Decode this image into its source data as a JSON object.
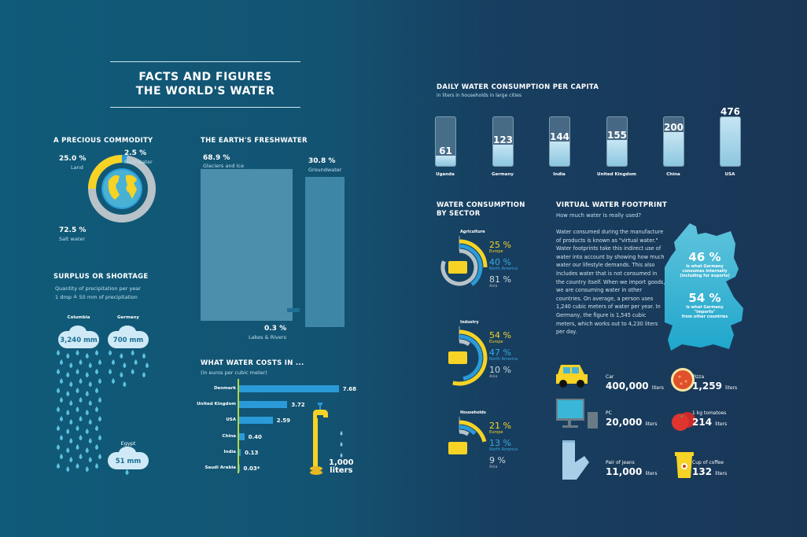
{
  "title": {
    "line1": "FACTS AND FIGURES",
    "line2": "THE WORLD'S WATER"
  },
  "colors": {
    "yellow": "#f6d325",
    "blue": "#2a9bd8",
    "gray": "#b7c3c8",
    "light_blue": "#8cc6e0"
  },
  "commodity": {
    "heading": "A PRECIOUS COMMODITY",
    "items": [
      {
        "pct": "25.0 %",
        "label": "Land"
      },
      {
        "pct": "2.5 %",
        "label": "Freshwater"
      },
      {
        "pct": "72.5 %",
        "label": "Salt water"
      }
    ],
    "icon": "globe-icon"
  },
  "freshwater": {
    "heading": "THE EARTH'S FRESHWATER",
    "items": [
      {
        "pct": "68.9 %",
        "label": "Glaciers and Ice"
      },
      {
        "pct": "30.8 %",
        "label": "Groundwater"
      },
      {
        "pct": "0.3 %",
        "label": "Lakes & Rivers"
      }
    ]
  },
  "surplus": {
    "heading": "SURPLUS OR SHORTAGE",
    "sub1": "Quantity of precipitation per year",
    "sub2": "1 drop ≙ 50 mm of precipitation",
    "countries": [
      {
        "name": "Columbia",
        "value": "3,240 mm",
        "mm": 3240
      },
      {
        "name": "Germany",
        "value": "700 mm",
        "mm": 700
      },
      {
        "name": "Egypt",
        "value": "51 mm",
        "mm": 51
      }
    ]
  },
  "costs": {
    "heading": "WHAT WATER COSTS IN ...",
    "sub": "(in euros per cubic meter)",
    "tap_label1": "1,000",
    "tap_label2": "liters"
  },
  "daily": {
    "heading": "DAILY WATER CONSUMPTION PER CAPITA",
    "sub": "in liters in households in large cities"
  },
  "sector": {
    "heading1": "WATER CONSUMPTION",
    "heading2": "BY SECTOR",
    "groups": [
      {
        "name": "Agriculture",
        "icon": "tractor-icon",
        "values": [
          {
            "pct": "25 %",
            "region": "Europe"
          },
          {
            "pct": "40 %",
            "region": "North America"
          },
          {
            "pct": "81 %",
            "region": "Asia"
          }
        ]
      },
      {
        "name": "Industry",
        "icon": "factory-icon",
        "values": [
          {
            "pct": "54 %",
            "region": "Europe"
          },
          {
            "pct": "47 %",
            "region": "North America"
          },
          {
            "pct": "10 %",
            "region": "Asia"
          }
        ]
      },
      {
        "name": "Households",
        "icon": "house-icon",
        "values": [
          {
            "pct": "21 %",
            "region": "Europe"
          },
          {
            "pct": "13 %",
            "region": "North America"
          },
          {
            "pct": "9 %",
            "region": "Asia"
          }
        ]
      }
    ]
  },
  "virtual": {
    "heading": "VIRTUAL WATER FOOTPRINT",
    "sub": "How much water is really used?",
    "text": "Water consumed during the manufacture of products is known as \"virtual water.\" Water footprints take this indirect use of water into account by showing how much water our lifestyle demands. This also includes water that is not consumed in the country itself. When we import goods, we are consuming water in other countries. On average, a person uses 1,240 cubic meters of water per year. In Germany, the figure is 1,545 cubic meters, which works out to 4,230 liters per day.",
    "map": {
      "pct1": "46 %",
      "text1a": "is what Germany",
      "text1b": "consumes internally",
      "text1c": "(including for exports)",
      "pct2": "54 %",
      "text2a": "is what Germany",
      "text2b": "\"imports\"",
      "text2c": "from other countries"
    },
    "products": [
      {
        "label": "Car",
        "value": "400,000",
        "unit": "liters",
        "icon": "car-icon"
      },
      {
        "label": "Pizza",
        "value": "1,259",
        "unit": "liters",
        "icon": "pizza-icon"
      },
      {
        "label": "PC",
        "value": "20,000",
        "unit": "liters",
        "icon": "computer-icon"
      },
      {
        "label": "1 kg tomatoes",
        "value": "214",
        "unit": "liters",
        "icon": "tomato-icon"
      },
      {
        "label": "Pair of jeans",
        "value": "11,000",
        "unit": "liters",
        "icon": "jeans-icon"
      },
      {
        "label": "Cup of coffee",
        "value": "132",
        "unit": "liters",
        "icon": "coffee-cup-icon"
      }
    ]
  },
  "chart_data": [
    {
      "type": "pie",
      "title": "A PRECIOUS COMMODITY",
      "categories": [
        "Land",
        "Freshwater",
        "Salt water"
      ],
      "values": [
        25.0,
        2.5,
        72.5
      ]
    },
    {
      "type": "area",
      "title": "THE EARTH'S FRESHWATER",
      "categories": [
        "Glaciers and Ice",
        "Groundwater",
        "Lakes & Rivers"
      ],
      "values": [
        68.9,
        30.8,
        0.3
      ]
    },
    {
      "type": "bar",
      "orientation": "horizontal",
      "title": "WHAT WATER COSTS IN ...",
      "subtitle": "(in euros per cubic meter)",
      "categories": [
        "Denmark",
        "United Kingdom",
        "USA",
        "China",
        "India",
        "Saudi Arabia"
      ],
      "values": [
        7.68,
        3.72,
        2.59,
        0.4,
        0.13,
        0.03
      ],
      "labels": [
        "7.68",
        "3.72",
        "2.59",
        "0.40",
        "0.13",
        "0.03*"
      ]
    },
    {
      "type": "bar",
      "title": "DAILY WATER CONSUMPTION PER CAPITA",
      "subtitle": "in liters in households in large cities",
      "categories": [
        "Uganda",
        "Germany",
        "India",
        "United Kingdom",
        "China",
        "USA"
      ],
      "values": [
        61,
        123,
        144,
        155,
        200,
        476
      ]
    },
    {
      "type": "pie",
      "title": "WATER CONSUMPTION BY SECTOR",
      "categories": [
        "Agriculture",
        "Industry",
        "Households"
      ],
      "series": [
        {
          "name": "Europe",
          "values": [
            25,
            54,
            21
          ]
        },
        {
          "name": "North America",
          "values": [
            40,
            47,
            13
          ]
        },
        {
          "name": "Asia",
          "values": [
            81,
            10,
            9
          ]
        }
      ]
    }
  ]
}
